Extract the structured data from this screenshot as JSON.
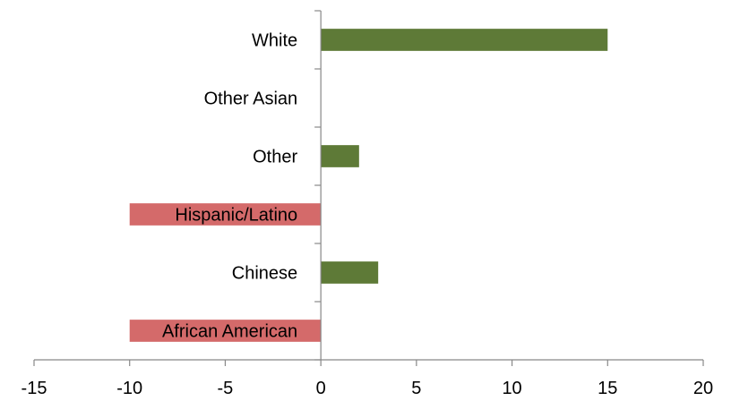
{
  "chart_data": {
    "type": "bar",
    "orientation": "horizontal",
    "categories": [
      "African American",
      "Chinese",
      "Hispanic/Latino",
      "Other",
      "Other Asian",
      "White"
    ],
    "values": [
      -10,
      3,
      -10,
      2,
      0,
      15
    ],
    "xlim": [
      -15,
      20
    ],
    "xticks": [
      -15,
      -10,
      -5,
      0,
      5,
      10,
      15,
      20
    ],
    "title": "",
    "xlabel": "",
    "ylabel": "",
    "grid": false,
    "legend": "none",
    "colors": {
      "positive": "#5E7A37",
      "negative": "#D46A6A"
    }
  }
}
